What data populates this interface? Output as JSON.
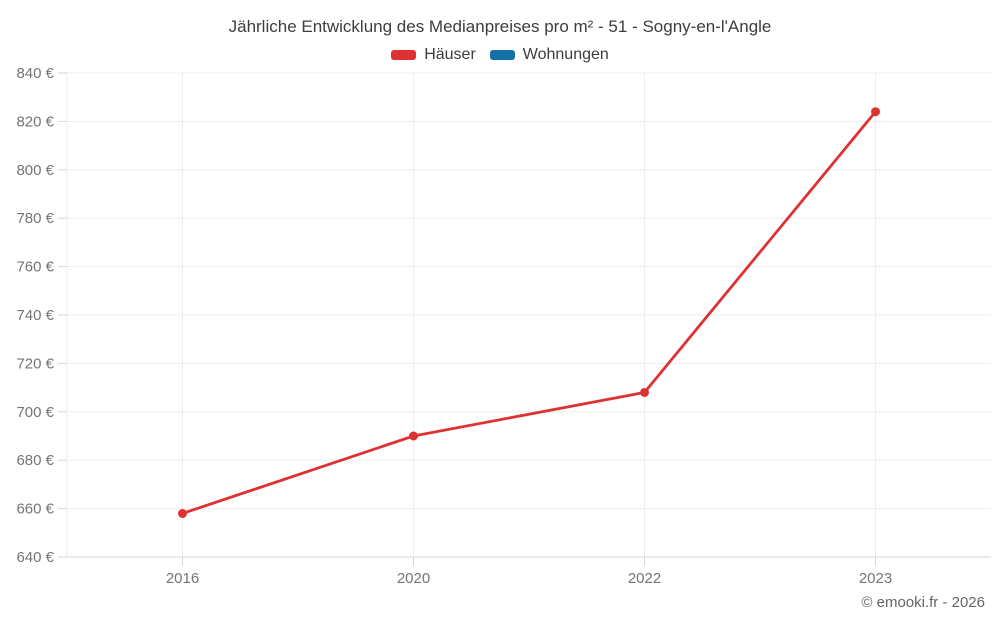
{
  "chart_data": {
    "type": "line",
    "title": "Jährliche Entwicklung des Medianpreises pro m² - 51 - Sogny-en-l'Angle",
    "categories": [
      "2016",
      "2020",
      "2022",
      "2023"
    ],
    "series": [
      {
        "name": "Häuser",
        "color": "#dc3232",
        "values": [
          658,
          690,
          708,
          824
        ]
      },
      {
        "name": "Wohnungen",
        "color": "#1470a6",
        "values": [
          null,
          null,
          null,
          null
        ]
      }
    ],
    "xlabel": "",
    "ylabel": "",
    "ylim": [
      640,
      840
    ],
    "ytick_step": 20,
    "ytick_suffix": " €",
    "grid": true,
    "legend_position": "top",
    "grid_color": "#ededed",
    "axis_color": "#d6d6d6"
  },
  "footer": {
    "copyright": "© emooki.fr - 2026"
  }
}
